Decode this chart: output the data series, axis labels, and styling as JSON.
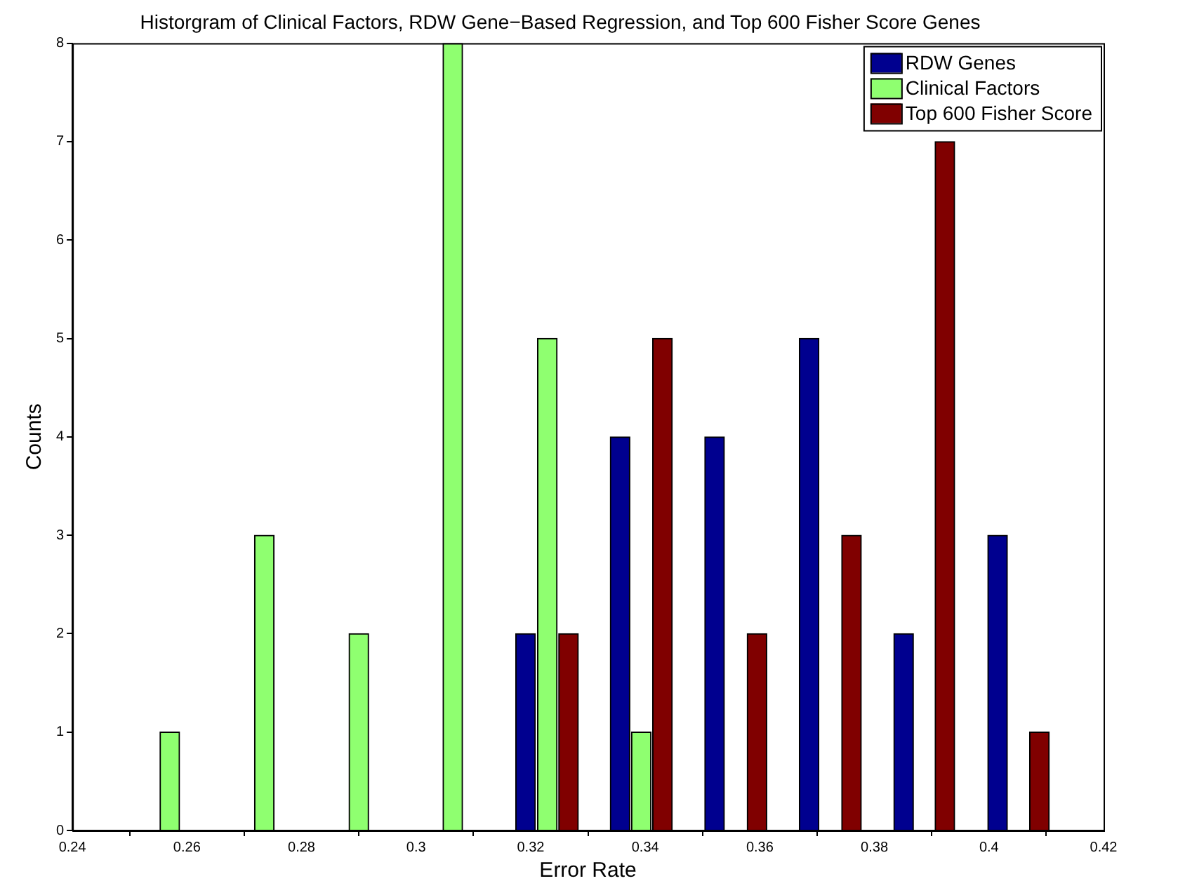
{
  "chart_data": {
    "type": "bar",
    "title": "Historgram of Clinical Factors, RDW Gene−Based Regression, and Top 600 Fisher Score Genes",
    "xlabel": "Error Rate",
    "ylabel": "Counts",
    "series": [
      {
        "name": "RDW Genes",
        "color": "#00008f",
        "x": [
          0.3191,
          0.3356,
          0.3521,
          0.3686,
          0.3851,
          0.4015
        ],
        "values": [
          2,
          4,
          4,
          5,
          2,
          3
        ]
      },
      {
        "name": "Clinical Factors",
        "color": "#8fff70",
        "x": [
          0.257,
          0.2735,
          0.29,
          0.3064,
          0.3229,
          0.3393
        ],
        "values": [
          1,
          3,
          2,
          8,
          5,
          1
        ]
      },
      {
        "name": "Top 600 Fisher Score",
        "color": "#800000",
        "x": [
          0.3266,
          0.343,
          0.3595,
          0.376,
          0.3923,
          0.4088
        ],
        "values": [
          2,
          5,
          2,
          3,
          7,
          1
        ]
      }
    ],
    "xlim": [
      0.24,
      0.42
    ],
    "xticks": [
      0.24,
      0.26,
      0.28,
      0.3,
      0.32,
      0.34,
      0.36,
      0.38,
      0.4,
      0.42
    ],
    "ylim": [
      0,
      8
    ],
    "yticks": [
      0,
      1,
      2,
      3,
      4,
      5,
      6,
      7,
      8
    ],
    "grid": false,
    "legend": "top right"
  }
}
